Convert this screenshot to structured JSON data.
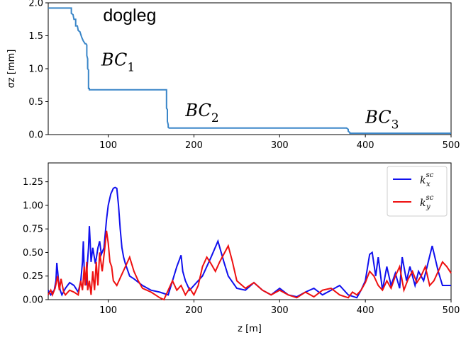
{
  "colors": {
    "sigma_line": "#3a86c8",
    "kx_line": "#1010ee",
    "ky_line": "#ee1010"
  },
  "chart_data": [
    {
      "type": "line",
      "ylabel": "σz [mm]",
      "xlim": [
        30,
        500
      ],
      "ylim": [
        0,
        2.0
      ],
      "x_ticks": [
        "100",
        "200",
        "300",
        "400",
        "500"
      ],
      "y_ticks": [
        "0.0",
        "0.5",
        "1.0",
        "1.5",
        "2.0"
      ],
      "grid": false,
      "series": [
        {
          "x": [
            30,
            57,
            57,
            59,
            60,
            62,
            62,
            64,
            65,
            67,
            68,
            69,
            70,
            71,
            72,
            73,
            74,
            75,
            75,
            76,
            76,
            77,
            77,
            78,
            78,
            168,
            168,
            169,
            169,
            170,
            170,
            171,
            378,
            380,
            380,
            382,
            382,
            500
          ],
          "y": [
            1.92,
            1.92,
            1.84,
            1.82,
            1.75,
            1.75,
            1.65,
            1.65,
            1.58,
            1.56,
            1.52,
            1.48,
            1.45,
            1.42,
            1.4,
            1.38,
            1.38,
            1.36,
            1.2,
            1.15,
            1.0,
            0.98,
            0.7,
            0.7,
            0.68,
            0.68,
            0.4,
            0.38,
            0.2,
            0.15,
            0.11,
            0.1,
            0.1,
            0.08,
            0.05,
            0.03,
            0.02,
            0.02
          ]
        }
      ],
      "annotations": [
        {
          "text": "dogleg",
          "x": 94,
          "y": 1.72
        },
        {
          "text": "BC",
          "sub": "1",
          "x": 92,
          "y": 1.05
        },
        {
          "text": "BC",
          "sub": "2",
          "x": 190,
          "y": 0.28
        },
        {
          "text": "BC",
          "sub": "3",
          "x": 400,
          "y": 0.18
        }
      ]
    },
    {
      "type": "line",
      "xlabel": "z [m]",
      "xlim": [
        30,
        500
      ],
      "ylim": [
        0,
        1.45
      ],
      "x_ticks": [
        "100",
        "200",
        "300",
        "400",
        "500"
      ],
      "y_ticks": [
        "0.00",
        "0.25",
        "0.50",
        "0.75",
        "1.00",
        "1.25"
      ],
      "grid": false,
      "legend": "top-right",
      "series": [
        {
          "name": "k_x^sc",
          "legend_base": "k",
          "legend_sub": "x",
          "legend_sup": "sc",
          "x": [
            30,
            33,
            35,
            37,
            39,
            40,
            41,
            42,
            44,
            46,
            50,
            55,
            60,
            65,
            68,
            70,
            71,
            72,
            74,
            75,
            77,
            78,
            79,
            80,
            82,
            85,
            88,
            90,
            92,
            95,
            98,
            100,
            103,
            106,
            108,
            110,
            112,
            114,
            116,
            118,
            120,
            125,
            130,
            140,
            150,
            160,
            170,
            180,
            185,
            187,
            190,
            195,
            200,
            210,
            220,
            228,
            235,
            240,
            250,
            260,
            270,
            280,
            290,
            300,
            310,
            320,
            330,
            340,
            350,
            360,
            370,
            380,
            390,
            395,
            400,
            405,
            408,
            412,
            415,
            420,
            425,
            430,
            435,
            440,
            443,
            448,
            452,
            458,
            462,
            468,
            472,
            478,
            485,
            490,
            500
          ],
          "y": [
            0.1,
            0.05,
            0.08,
            0.1,
            0.2,
            0.39,
            0.3,
            0.2,
            0.1,
            0.05,
            0.12,
            0.18,
            0.15,
            0.08,
            0.2,
            0.4,
            0.62,
            0.3,
            0.15,
            0.3,
            0.55,
            0.78,
            0.6,
            0.4,
            0.55,
            0.38,
            0.55,
            0.62,
            0.48,
            0.55,
            0.85,
            1.0,
            1.12,
            1.18,
            1.19,
            1.18,
            1.0,
            0.75,
            0.55,
            0.45,
            0.38,
            0.25,
            0.22,
            0.15,
            0.1,
            0.08,
            0.05,
            0.35,
            0.47,
            0.3,
            0.2,
            0.1,
            0.15,
            0.25,
            0.45,
            0.62,
            0.4,
            0.25,
            0.12,
            0.1,
            0.18,
            0.1,
            0.05,
            0.12,
            0.05,
            0.03,
            0.08,
            0.12,
            0.05,
            0.1,
            0.15,
            0.05,
            0.02,
            0.1,
            0.2,
            0.48,
            0.5,
            0.25,
            0.45,
            0.1,
            0.35,
            0.15,
            0.28,
            0.12,
            0.45,
            0.2,
            0.35,
            0.15,
            0.3,
            0.2,
            0.35,
            0.57,
            0.3,
            0.15,
            0.15
          ]
        },
        {
          "name": "k_y^sc",
          "legend_base": "k",
          "legend_sub": "y",
          "legend_sup": "sc",
          "x": [
            30,
            33,
            35,
            38,
            41,
            43,
            45,
            48,
            50,
            55,
            60,
            65,
            68,
            70,
            72,
            73,
            75,
            76,
            78,
            80,
            82,
            84,
            86,
            88,
            90,
            93,
            96,
            98,
            100,
            102,
            104,
            106,
            110,
            115,
            120,
            125,
            130,
            135,
            140,
            145,
            150,
            155,
            160,
            165,
            170,
            175,
            180,
            185,
            190,
            195,
            200,
            205,
            210,
            215,
            220,
            225,
            230,
            240,
            245,
            250,
            260,
            270,
            280,
            290,
            300,
            310,
            320,
            330,
            340,
            350,
            360,
            370,
            380,
            385,
            390,
            395,
            400,
            405,
            410,
            415,
            420,
            425,
            430,
            435,
            440,
            445,
            450,
            455,
            460,
            465,
            470,
            475,
            480,
            485,
            490,
            495,
            500
          ],
          "y": [
            0.05,
            0.1,
            0.05,
            0.12,
            0.25,
            0.1,
            0.22,
            0.08,
            0.05,
            0.1,
            0.08,
            0.05,
            0.2,
            0.1,
            0.35,
            0.15,
            0.4,
            0.1,
            0.2,
            0.05,
            0.3,
            0.1,
            0.4,
            0.15,
            0.5,
            0.3,
            0.55,
            0.73,
            0.6,
            0.4,
            0.35,
            0.2,
            0.15,
            0.25,
            0.35,
            0.45,
            0.3,
            0.2,
            0.12,
            0.1,
            0.08,
            0.05,
            0.02,
            0.0,
            0.1,
            0.2,
            0.1,
            0.15,
            0.05,
            0.12,
            0.05,
            0.15,
            0.35,
            0.45,
            0.38,
            0.3,
            0.4,
            0.57,
            0.4,
            0.2,
            0.12,
            0.18,
            0.1,
            0.05,
            0.1,
            0.05,
            0.02,
            0.08,
            0.03,
            0.1,
            0.12,
            0.05,
            0.02,
            0.08,
            0.05,
            0.1,
            0.18,
            0.3,
            0.25,
            0.15,
            0.1,
            0.2,
            0.12,
            0.25,
            0.35,
            0.1,
            0.22,
            0.3,
            0.18,
            0.25,
            0.35,
            0.15,
            0.2,
            0.3,
            0.4,
            0.35,
            0.28
          ]
        }
      ]
    }
  ]
}
